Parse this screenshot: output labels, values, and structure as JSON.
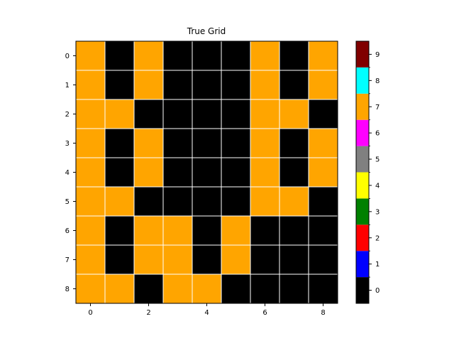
{
  "chart_data": {
    "type": "heatmap",
    "title": "True Grid",
    "xlabel": "",
    "ylabel": "",
    "rows": 9,
    "cols": 9,
    "x_ticks": [
      0,
      2,
      4,
      6,
      8
    ],
    "y_ticks": [
      0,
      1,
      2,
      3,
      4,
      5,
      6,
      7,
      8
    ],
    "grid": true,
    "grid_color": "#ffffff",
    "values": [
      [
        7,
        0,
        7,
        0,
        0,
        0,
        7,
        0,
        7
      ],
      [
        7,
        0,
        7,
        0,
        0,
        0,
        7,
        0,
        7
      ],
      [
        7,
        7,
        0,
        0,
        0,
        0,
        7,
        7,
        0
      ],
      [
        7,
        0,
        7,
        0,
        0,
        0,
        7,
        0,
        7
      ],
      [
        7,
        0,
        7,
        0,
        0,
        0,
        7,
        0,
        7
      ],
      [
        7,
        7,
        0,
        0,
        0,
        0,
        7,
        7,
        0
      ],
      [
        7,
        0,
        7,
        7,
        0,
        7,
        0,
        0,
        0
      ],
      [
        7,
        0,
        7,
        7,
        0,
        7,
        0,
        0,
        0
      ],
      [
        7,
        7,
        0,
        7,
        7,
        0,
        0,
        0,
        0
      ]
    ],
    "colorbar": {
      "range": [
        0,
        9
      ],
      "ticks": [
        0,
        1,
        2,
        3,
        4,
        5,
        6,
        7,
        8,
        9
      ],
      "colors": [
        "#000000",
        "#0000ff",
        "#ff0000",
        "#008000",
        "#ffff00",
        "#808080",
        "#ff00ff",
        "#ffa500",
        "#00ffff",
        "#800000"
      ]
    }
  }
}
